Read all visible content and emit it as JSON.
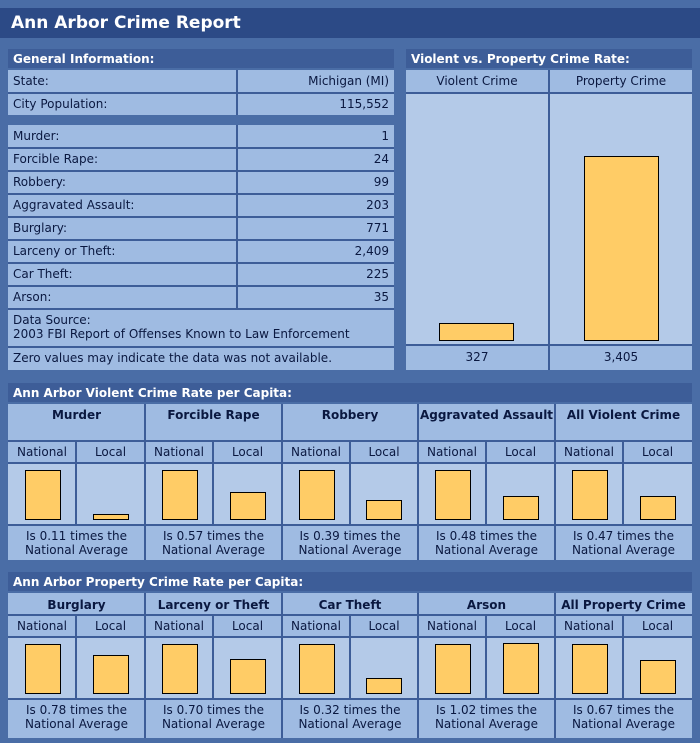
{
  "page_title": "Ann Arbor Crime Report",
  "general": {
    "header": "General Information:",
    "state_label": "State:",
    "state_value": "Michigan (MI)",
    "population_label": "City Population:",
    "population_value": "115,552",
    "crimes": [
      {
        "label": "Murder:",
        "value": "1"
      },
      {
        "label": "Forcible Rape:",
        "value": "24"
      },
      {
        "label": "Robbery:",
        "value": "99"
      },
      {
        "label": "Aggravated Assault:",
        "value": "203"
      },
      {
        "label": "Burglary:",
        "value": "771"
      },
      {
        "label": "Larceny or Theft:",
        "value": "2,409"
      },
      {
        "label": "Car Theft:",
        "value": "225"
      },
      {
        "label": "Arson:",
        "value": "35"
      }
    ],
    "source_label": "Data Source:",
    "source_value": "2003 FBI Report of Offenses Known to Law Enforcement",
    "zero_note": "Zero values may indicate the data was not available."
  },
  "vp": {
    "header": "Violent vs. Property Crime Rate:",
    "violent_label": "Violent Crime",
    "property_label": "Property Crime",
    "violent_value": "327",
    "property_value": "3,405"
  },
  "violent_section": {
    "header": "Ann Arbor Violent Crime Rate per Capita:",
    "national_label": "National",
    "local_label": "Local",
    "crimes": [
      {
        "name": "Murder",
        "note1": "Is 0.11 times the",
        "note2": "National Average"
      },
      {
        "name": "Forcible Rape",
        "note1": "Is 0.57 times the",
        "note2": "National Average"
      },
      {
        "name": "Robbery",
        "note1": "Is 0.39 times the",
        "note2": "National Average"
      },
      {
        "name": "Aggravated Assault",
        "note1": "Is 0.48 times the",
        "note2": "National Average"
      },
      {
        "name": "All Violent Crime",
        "note1": "Is 0.47 times the",
        "note2": "National Average"
      }
    ]
  },
  "property_section": {
    "header": "Ann Arbor Property Crime Rate per Capita:",
    "national_label": "National",
    "local_label": "Local",
    "crimes": [
      {
        "name": "Burglary",
        "note1": "Is 0.78 times the",
        "note2": "National Average"
      },
      {
        "name": "Larceny or Theft",
        "note1": "Is 0.70 times the",
        "note2": "National Average"
      },
      {
        "name": "Car Theft",
        "note1": "Is 0.32 times the",
        "note2": "National Average"
      },
      {
        "name": "Arson",
        "note1": "Is 1.02 times the",
        "note2": "National Average"
      },
      {
        "name": "All Property Crime",
        "note1": "Is 0.67 times the",
        "note2": "National Average"
      }
    ]
  },
  "colors": {
    "bar_fill": "#ffcc66",
    "panel": "#9fbbe2",
    "header": "#3d5d98"
  },
  "chart_data": [
    {
      "type": "bar",
      "categories": [
        "Violent Crime",
        "Property Crime"
      ],
      "values": [
        327,
        3405
      ]
    },
    {
      "type": "bar",
      "categories": [
        "Murder",
        "Forcible Rape",
        "Robbery",
        "Aggravated Assault",
        "All Violent Crime"
      ],
      "series": [
        {
          "name": "National",
          "values": [
            1,
            1,
            1,
            1,
            1
          ]
        },
        {
          "name": "Local",
          "values": [
            0.11,
            0.57,
            0.39,
            0.48,
            0.47
          ]
        }
      ]
    },
    {
      "type": "bar",
      "categories": [
        "Burglary",
        "Larceny or Theft",
        "Car Theft",
        "Arson",
        "All Property Crime"
      ],
      "series": [
        {
          "name": "National",
          "values": [
            1,
            1,
            1,
            1,
            1
          ]
        },
        {
          "name": "Local",
          "values": [
            0.78,
            0.7,
            0.32,
            1.02,
            0.67
          ]
        }
      ]
    }
  ]
}
